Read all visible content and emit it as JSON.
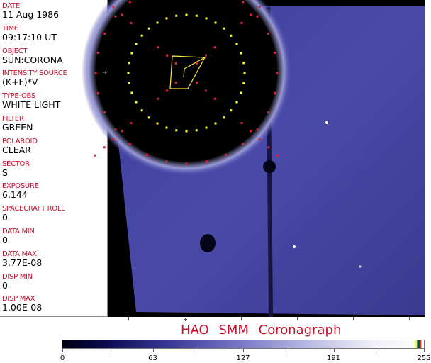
{
  "fields": [
    {
      "label": "DATE",
      "value": "11 Aug 1986"
    },
    {
      "label": "TIME",
      "value": "09:17:10 UT"
    },
    {
      "label": "OBJECT",
      "value": "SUN:CORONA"
    },
    {
      "label": "INTENSITY SOURCE",
      "value": "(K+F)*V"
    },
    {
      "label": "TYPE-OBS",
      "value": "WHITE LIGHT"
    },
    {
      "label": "FILTER",
      "value": "GREEN"
    },
    {
      "label": "POLAROID",
      "value": "CLEAR"
    },
    {
      "label": "SECTOR",
      "value": "S"
    },
    {
      "label": "EXPOSURE",
      "value": "6.144"
    },
    {
      "label": "SPACECRAFT ROLL",
      "value": "0"
    },
    {
      "label": "DATA MIN",
      "value": "0"
    },
    {
      "label": "DATA MAX",
      "value": "3.77E-08"
    },
    {
      "label": "DISP MIN",
      "value": "0"
    },
    {
      "label": "DISP MAX",
      "value": "1.00E-08"
    }
  ],
  "title": "HAO  SMM Coronagraph",
  "colorbar": {
    "ticks": [
      "0",
      "63",
      "127",
      "191",
      "255"
    ],
    "min": 0,
    "max": 255
  },
  "colors": {
    "label": "#c8102e",
    "background": "#000000",
    "corona": "#4848a8",
    "overlay_inner": "#ffff33",
    "overlay_outer": "#e0203a"
  }
}
